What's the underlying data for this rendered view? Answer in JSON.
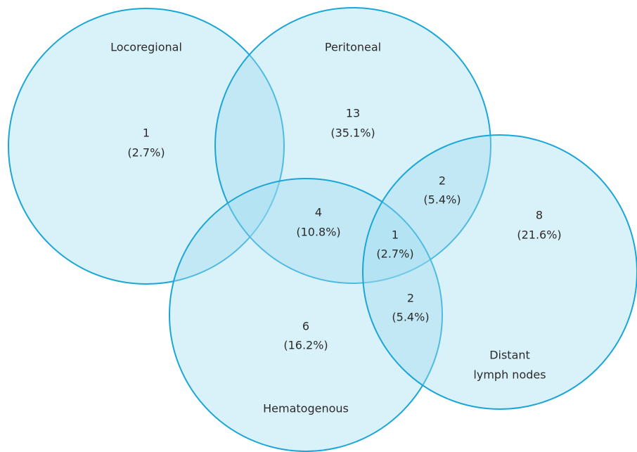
{
  "sets": [
    {
      "label": "Locoregional"
    },
    {
      "label": "Peritoneal"
    },
    {
      "label": "Hematogenous"
    },
    {
      "label_lines": [
        "Distant",
        "lymph nodes"
      ]
    }
  ],
  "regions": [
    {
      "count": "1",
      "percent": "(2.7%)"
    },
    {
      "count": "13",
      "percent": "(35.1%)"
    },
    {
      "count": "2",
      "percent": "(5.4%)"
    },
    {
      "count": "8",
      "percent": "(21.6%)"
    },
    {
      "count": "4",
      "percent": "(10.8%)"
    },
    {
      "count": "1",
      "percent": "(2.7%)"
    },
    {
      "count": "2",
      "percent": "(5.4%)"
    },
    {
      "count": "6",
      "percent": "(16.2%)"
    }
  ]
}
